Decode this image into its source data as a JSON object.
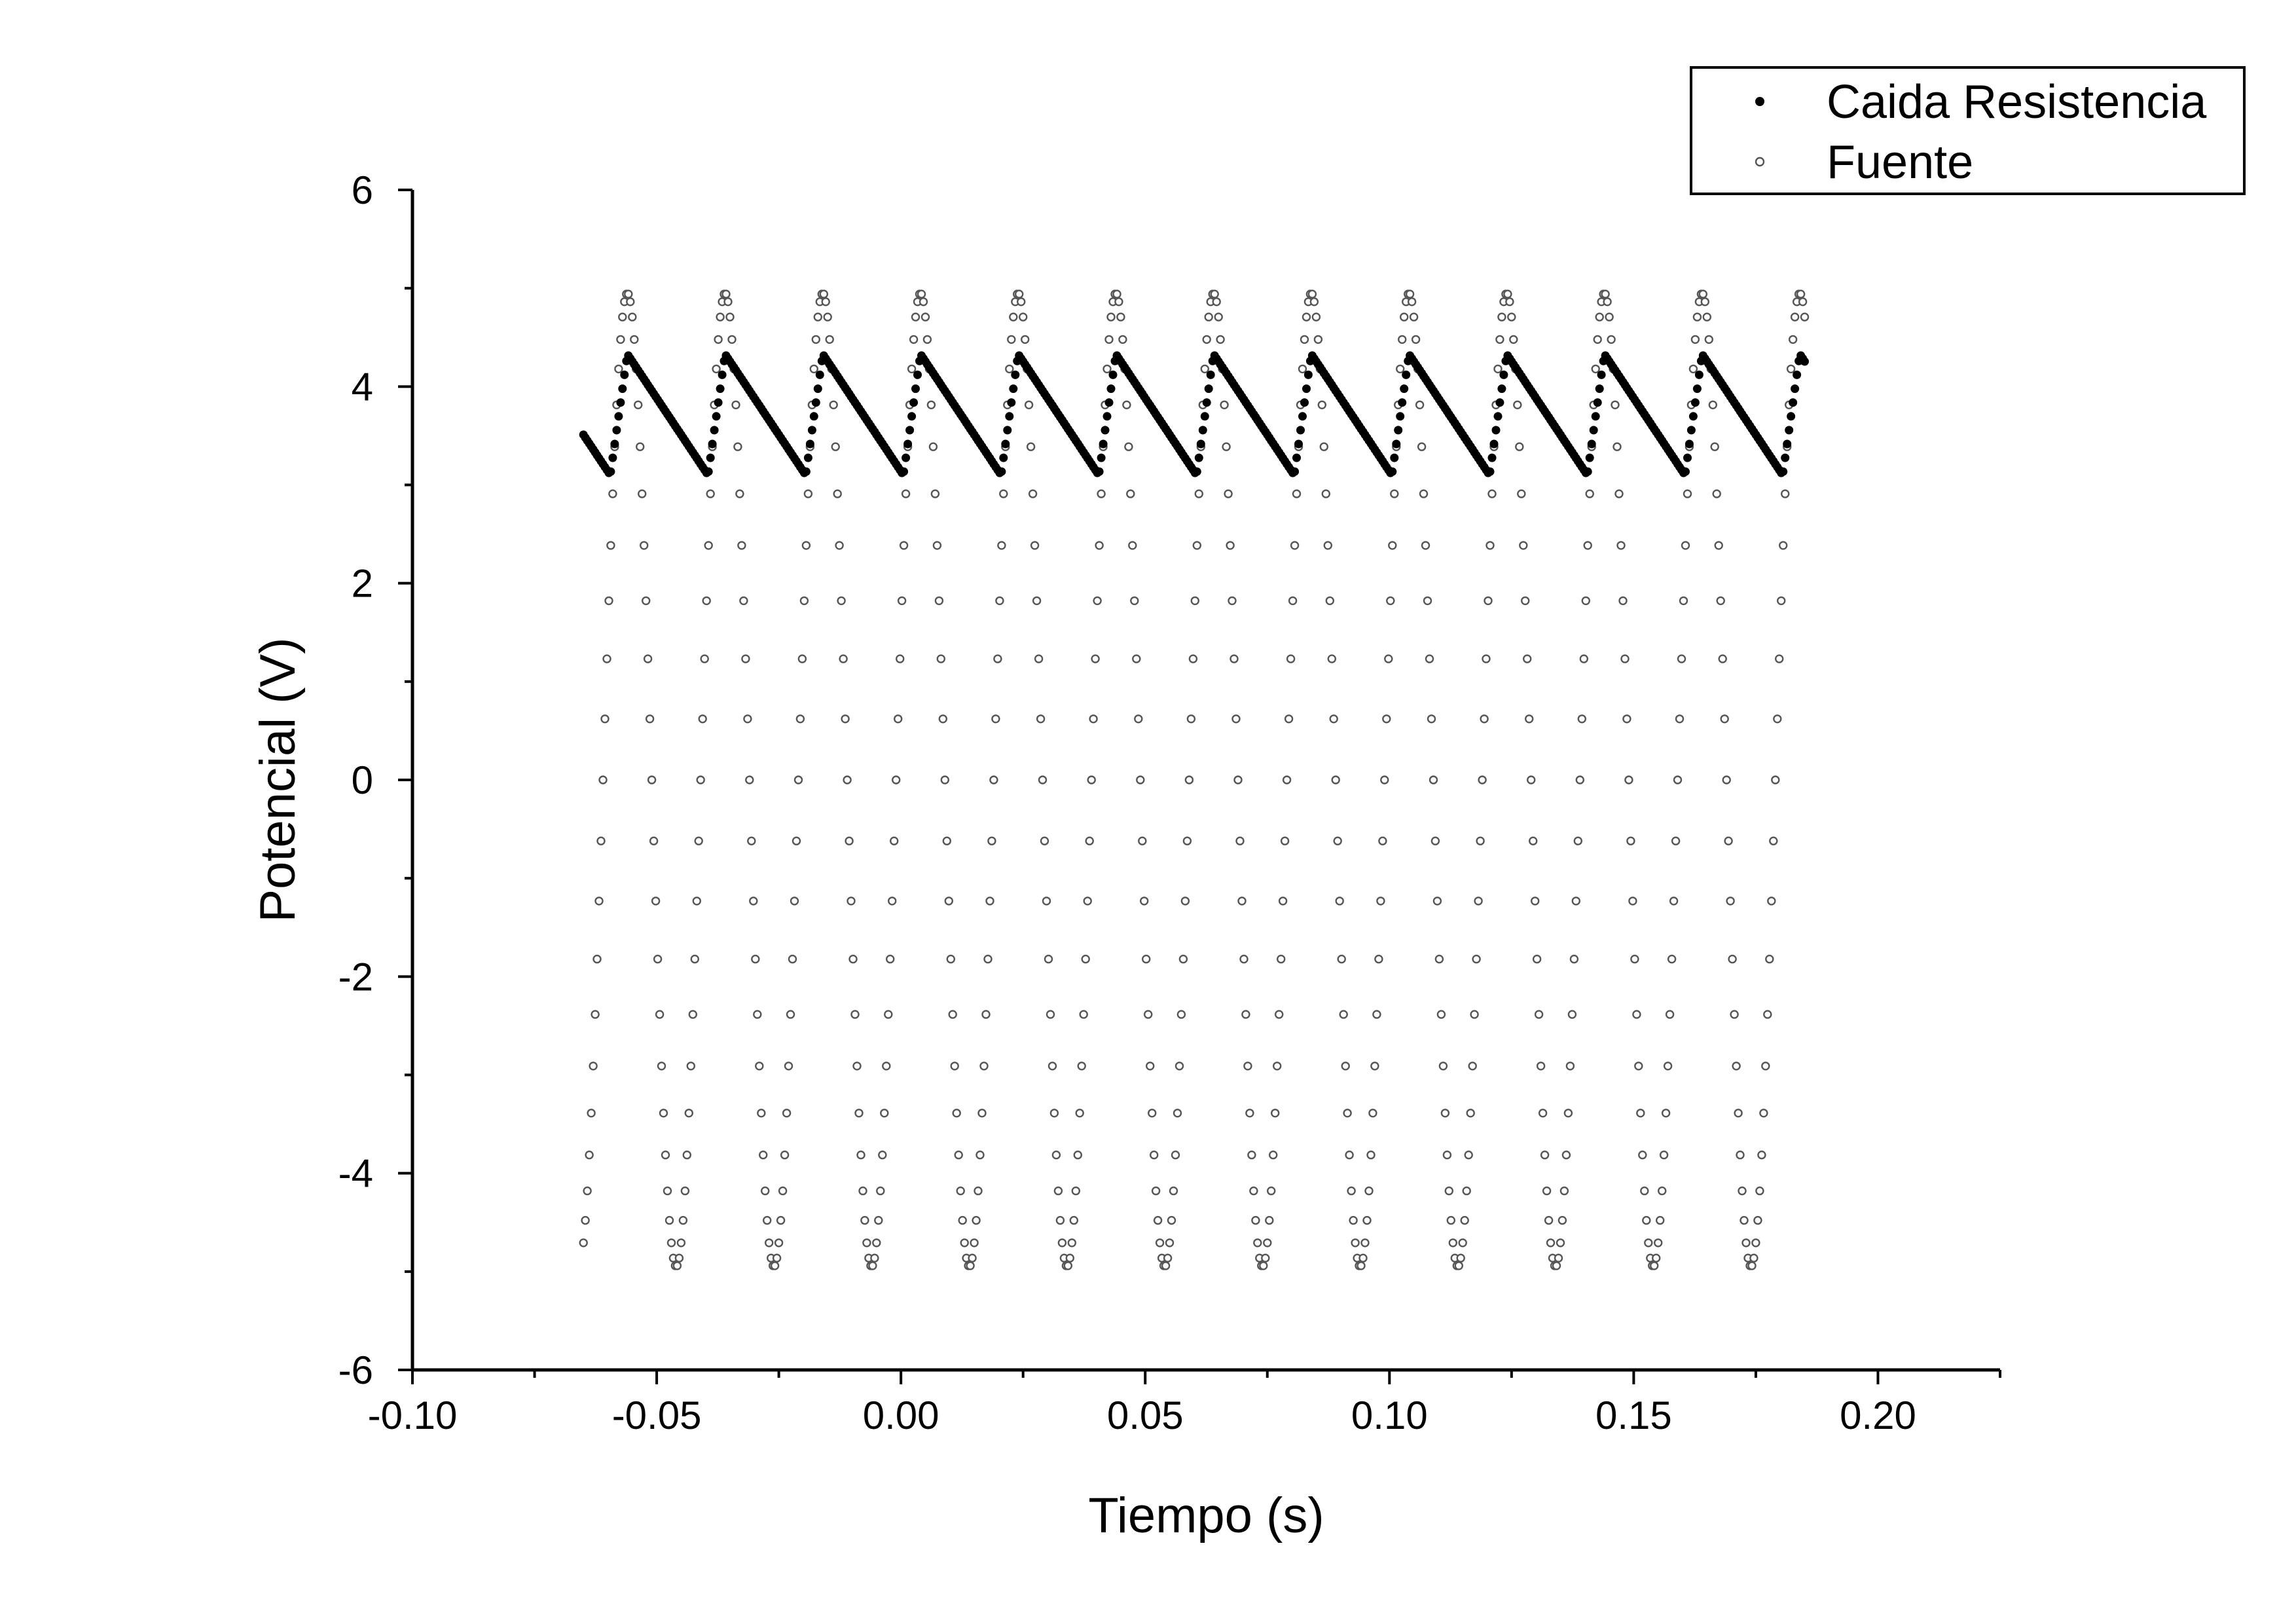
{
  "chart_data": {
    "type": "scatter",
    "title": "",
    "xlabel": "Tiempo (s)",
    "ylabel": "Potencial (V)",
    "xlim": [
      -0.1,
      0.225
    ],
    "ylim": [
      -6,
      6
    ],
    "x_ticks": [
      -0.1,
      -0.05,
      0.0,
      0.05,
      0.1,
      0.15,
      0.2
    ],
    "x_tick_labels": [
      "-0.10",
      "-0.05",
      "0.00",
      "0.05",
      "0.10",
      "0.15",
      "0.20"
    ],
    "y_ticks": [
      -6,
      -4,
      -2,
      0,
      2,
      4,
      6
    ],
    "y_tick_labels": [
      "-6",
      "-4",
      "-2",
      "0",
      "2",
      "4",
      "6"
    ],
    "x_minor_step": 0.025,
    "y_minor_step": 1,
    "grid": false,
    "legend": {
      "position": "top-right"
    },
    "sampling": {
      "t_start": -0.065,
      "t_end": 0.1848,
      "dt": 0.0004
    },
    "series": [
      {
        "name": "Caida Resistencia",
        "marker": "filled-circle",
        "color": "#000000",
        "model": {
          "kind": "rectified-rc-decay",
          "period": 0.02,
          "peak_time": -0.056,
          "charge_start_time": -0.0595,
          "peak": 4.33,
          "trough": 3.1
        }
      },
      {
        "name": "Fuente",
        "marker": "open-circle",
        "color": "#555555",
        "model": {
          "kind": "sine",
          "amplitude": 4.95,
          "period": 0.02,
          "peak_time": -0.056
        }
      }
    ]
  }
}
